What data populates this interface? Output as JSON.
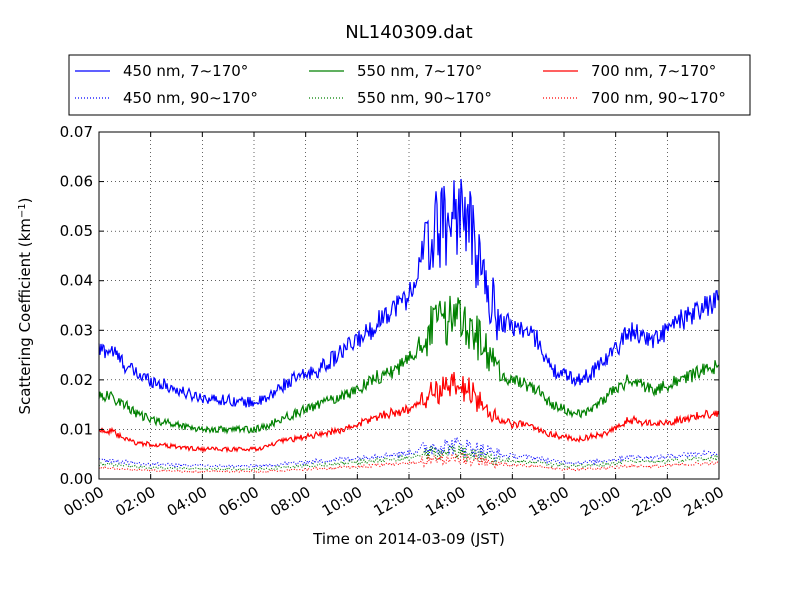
{
  "chart_data": {
    "type": "line",
    "title": "NL140309.dat",
    "xlabel": "Time on 2014-03-09 (JST)",
    "ylabel": "Scattering Coefficient (km",
    "ylabel_sup": "−1",
    "ylabel_close": ")",
    "xlim": [
      0,
      24
    ],
    "ylim": [
      0,
      0.07
    ],
    "grid": true,
    "legend_position": "top (above plot)",
    "x_ticks": [
      "00:00",
      "02:00",
      "04:00",
      "06:00",
      "08:00",
      "10:00",
      "12:00",
      "14:00",
      "16:00",
      "18:00",
      "20:00",
      "22:00",
      "24:00"
    ],
    "y_ticks": [
      "0.00",
      "0.01",
      "0.02",
      "0.03",
      "0.04",
      "0.05",
      "0.06",
      "0.07"
    ],
    "x": [
      0,
      0.5,
      1,
      1.5,
      2,
      2.5,
      3,
      3.5,
      4,
      4.5,
      5,
      5.5,
      6,
      6.5,
      7,
      7.5,
      8,
      8.5,
      9,
      9.5,
      10,
      10.5,
      11,
      11.5,
      12,
      12.5,
      13,
      13.5,
      14,
      14.5,
      15,
      15.5,
      16,
      16.5,
      17,
      17.5,
      18,
      18.5,
      19,
      19.5,
      20,
      20.5,
      21,
      21.5,
      22,
      22.5,
      23,
      23.5,
      24
    ],
    "series": [
      {
        "name": "450 nm, 7∼170°",
        "color": "#0000ff",
        "style": "solid",
        "values": [
          0.026,
          0.026,
          0.023,
          0.021,
          0.02,
          0.019,
          0.018,
          0.017,
          0.0165,
          0.016,
          0.016,
          0.0155,
          0.0155,
          0.016,
          0.0185,
          0.02,
          0.021,
          0.022,
          0.024,
          0.026,
          0.028,
          0.03,
          0.033,
          0.035,
          0.037,
          0.044,
          0.05,
          0.052,
          0.055,
          0.048,
          0.038,
          0.032,
          0.031,
          0.03,
          0.028,
          0.022,
          0.021,
          0.02,
          0.021,
          0.024,
          0.026,
          0.03,
          0.029,
          0.028,
          0.03,
          0.032,
          0.033,
          0.035,
          0.036
        ]
      },
      {
        "name": "550 nm, 7∼170°",
        "color": "#008000",
        "style": "solid",
        "values": [
          0.017,
          0.0165,
          0.015,
          0.013,
          0.012,
          0.0115,
          0.011,
          0.0105,
          0.01,
          0.01,
          0.01,
          0.01,
          0.01,
          0.0105,
          0.012,
          0.013,
          0.014,
          0.015,
          0.016,
          0.017,
          0.018,
          0.02,
          0.021,
          0.022,
          0.024,
          0.028,
          0.031,
          0.032,
          0.034,
          0.03,
          0.025,
          0.021,
          0.02,
          0.019,
          0.018,
          0.015,
          0.014,
          0.013,
          0.014,
          0.016,
          0.018,
          0.02,
          0.019,
          0.018,
          0.019,
          0.02,
          0.021,
          0.022,
          0.023
        ]
      },
      {
        "name": "700 nm, 7∼170°",
        "color": "#ff0000",
        "style": "solid",
        "values": [
          0.01,
          0.0095,
          0.008,
          0.0072,
          0.007,
          0.0068,
          0.0065,
          0.0062,
          0.006,
          0.006,
          0.006,
          0.006,
          0.006,
          0.0065,
          0.0075,
          0.008,
          0.0085,
          0.009,
          0.0095,
          0.01,
          0.011,
          0.012,
          0.013,
          0.0135,
          0.014,
          0.016,
          0.018,
          0.018,
          0.019,
          0.017,
          0.014,
          0.012,
          0.011,
          0.011,
          0.01,
          0.009,
          0.0085,
          0.008,
          0.0085,
          0.009,
          0.01,
          0.012,
          0.0115,
          0.011,
          0.0115,
          0.012,
          0.0125,
          0.013,
          0.0135
        ]
      },
      {
        "name": "450 nm, 90∼170°",
        "color": "#0000ff",
        "style": "dotted",
        "values": [
          0.0038,
          0.0037,
          0.0034,
          0.0032,
          0.003,
          0.0029,
          0.0028,
          0.0027,
          0.0027,
          0.0026,
          0.0026,
          0.0026,
          0.0026,
          0.0027,
          0.003,
          0.0032,
          0.0034,
          0.0036,
          0.0038,
          0.004,
          0.0042,
          0.0045,
          0.0048,
          0.005,
          0.0053,
          0.006,
          0.0066,
          0.0066,
          0.0068,
          0.0062,
          0.0055,
          0.0048,
          0.0046,
          0.0044,
          0.0042,
          0.0036,
          0.0034,
          0.0033,
          0.0034,
          0.0037,
          0.004,
          0.0045,
          0.0044,
          0.0043,
          0.0045,
          0.0048,
          0.005,
          0.0052,
          0.0053
        ]
      },
      {
        "name": "550 nm, 90∼170°",
        "color": "#008000",
        "style": "dotted",
        "values": [
          0.003,
          0.0029,
          0.0027,
          0.0025,
          0.0023,
          0.0022,
          0.0021,
          0.0021,
          0.002,
          0.002,
          0.002,
          0.002,
          0.002,
          0.0021,
          0.0023,
          0.0025,
          0.0027,
          0.0028,
          0.003,
          0.0032,
          0.0034,
          0.0036,
          0.0038,
          0.004,
          0.0042,
          0.0048,
          0.0053,
          0.0053,
          0.0055,
          0.005,
          0.0044,
          0.0039,
          0.0037,
          0.0035,
          0.0033,
          0.0029,
          0.0027,
          0.0026,
          0.0027,
          0.0029,
          0.0032,
          0.0036,
          0.0035,
          0.0034,
          0.0036,
          0.0038,
          0.004,
          0.0041,
          0.0042
        ]
      },
      {
        "name": "700 nm, 90∼170°",
        "color": "#ff0000",
        "style": "dotted",
        "values": [
          0.0022,
          0.0021,
          0.002,
          0.0018,
          0.0017,
          0.0016,
          0.0016,
          0.0015,
          0.0015,
          0.0015,
          0.0015,
          0.0015,
          0.0015,
          0.0016,
          0.0017,
          0.0018,
          0.002,
          0.0021,
          0.0022,
          0.0024,
          0.0025,
          0.0027,
          0.0029,
          0.003,
          0.0032,
          0.0036,
          0.004,
          0.004,
          0.0042,
          0.0038,
          0.0033,
          0.0029,
          0.0028,
          0.0027,
          0.0025,
          0.0022,
          0.002,
          0.0019,
          0.002,
          0.0022,
          0.0024,
          0.0027,
          0.0026,
          0.0025,
          0.0027,
          0.0029,
          0.003,
          0.0031,
          0.0032
        ]
      }
    ],
    "legend_order": [
      0,
      1,
      2,
      3,
      4,
      5
    ]
  }
}
